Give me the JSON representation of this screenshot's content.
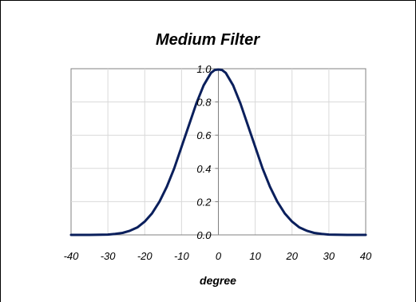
{
  "chart_data": {
    "type": "line",
    "title": "Medium Filter",
    "xlabel": "degree",
    "ylabel": "",
    "xlim": [
      -40,
      40
    ],
    "ylim": [
      0,
      1
    ],
    "x_ticks": [
      -40,
      -30,
      -20,
      -10,
      0,
      10,
      20,
      30,
      40
    ],
    "x_tick_labels": [
      "-40",
      "-30",
      "-20",
      "-10",
      "0",
      "10",
      "20",
      "30",
      "40"
    ],
    "y_ticks": [
      0,
      0.2,
      0.4,
      0.6,
      0.8,
      1
    ],
    "y_tick_labels": [
      "0.0",
      "0.2",
      "0.4",
      "0.6",
      "0.8",
      "1.0"
    ],
    "grid": true,
    "legend": "none",
    "series": [
      {
        "color": "#0a1f5c",
        "x": [
          -40,
          -35,
          -30,
          -28,
          -26,
          -24,
          -22,
          -20,
          -18,
          -16,
          -14,
          -12,
          -10,
          -8,
          -6,
          -4,
          -2,
          -1,
          0,
          1,
          2,
          4,
          6,
          8,
          10,
          12,
          14,
          16,
          18,
          20,
          22,
          24,
          26,
          28,
          30,
          35,
          40
        ],
        "y": [
          0.0,
          0.0,
          0.002,
          0.006,
          0.012,
          0.025,
          0.045,
          0.08,
          0.13,
          0.2,
          0.29,
          0.4,
          0.53,
          0.66,
          0.79,
          0.9,
          0.975,
          0.992,
          0.995,
          0.992,
          0.975,
          0.9,
          0.79,
          0.66,
          0.53,
          0.4,
          0.29,
          0.2,
          0.13,
          0.08,
          0.045,
          0.025,
          0.012,
          0.006,
          0.002,
          0.0,
          0.0
        ]
      }
    ]
  }
}
